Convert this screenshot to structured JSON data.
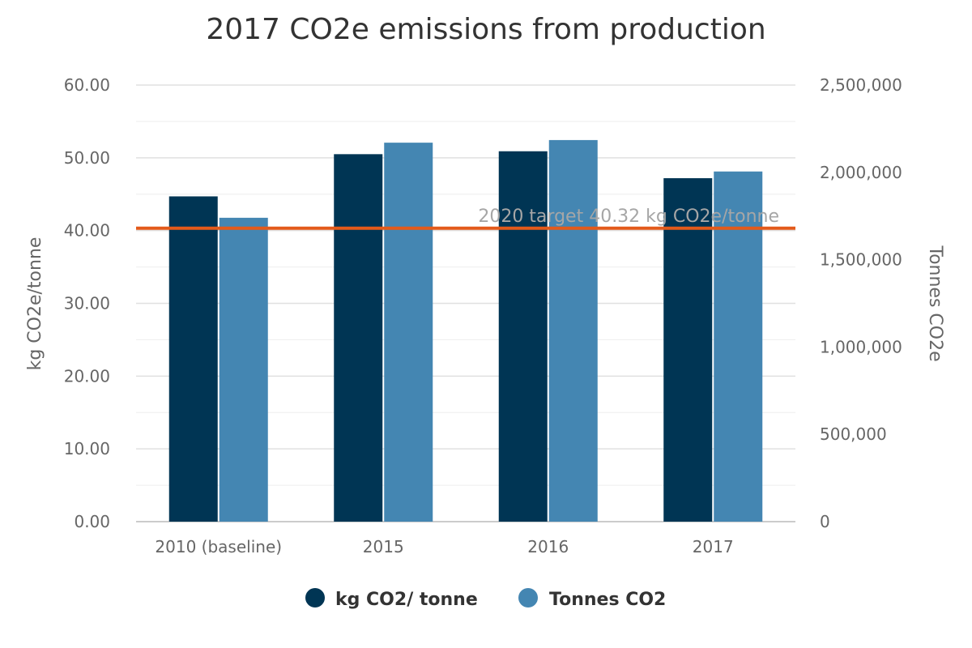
{
  "chart_data": {
    "type": "bar",
    "title": "2017 CO2e emissions from production",
    "categories": [
      "2010 (baseline)",
      "2015",
      "2016",
      "2017"
    ],
    "series": [
      {
        "name": "kg CO2/ tonne",
        "axis": "left",
        "color": "#003554",
        "values": [
          44.7,
          50.5,
          50.9,
          47.2
        ]
      },
      {
        "name": "Tonnes CO2",
        "axis": "right",
        "color": "#4486b2",
        "values": [
          1740000,
          2170000,
          2185000,
          2005000
        ]
      }
    ],
    "y_left": {
      "label": "kg CO2e/tonne",
      "range": [
        0,
        60
      ],
      "ticks": [
        "0.00",
        "10.00",
        "20.00",
        "30.00",
        "40.00",
        "50.00",
        "60.00"
      ]
    },
    "y_right": {
      "label": "Tonnes CO2e",
      "range": [
        0,
        2500000
      ],
      "ticks": [
        "0",
        "500,000",
        "1,000,000",
        "1,500,000",
        "2,000,000",
        "2,500,000"
      ]
    },
    "target_line": {
      "value": 40.32,
      "axis": "left",
      "label": "2020 target 40.32 kg CO2e/tonne",
      "color": "#e35a1a"
    },
    "grid": true,
    "legend_position": "bottom-center"
  }
}
